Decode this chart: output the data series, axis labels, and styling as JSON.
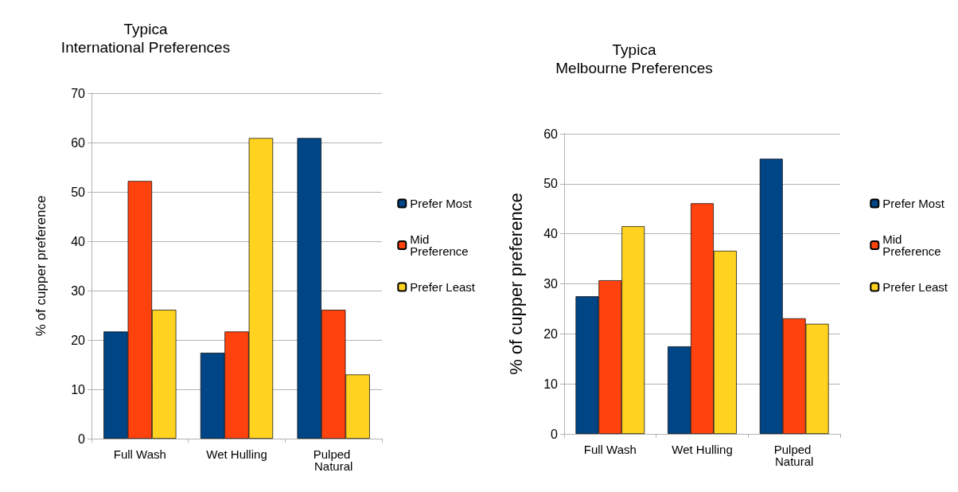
{
  "chart_data": [
    {
      "type": "bar",
      "title": "Typica\nInternational Preferences",
      "ylabel": "% of cupper preference",
      "categories": [
        "Full Wash",
        "Wet Hulling",
        "Pulped Natural"
      ],
      "series": [
        {
          "name": "Prefer Most",
          "color": "#004586",
          "values": [
            21.7,
            17.4,
            60.9
          ]
        },
        {
          "name": "Mid Preference",
          "color": "#ff420e",
          "values": [
            52.2,
            21.7,
            26.1
          ]
        },
        {
          "name": "Prefer Least",
          "color": "#ffd320",
          "values": [
            26.1,
            60.9,
            13.0
          ]
        }
      ],
      "ylim": [
        0,
        70
      ],
      "yticks": [
        0,
        10,
        20,
        30,
        40,
        50,
        60,
        70
      ],
      "grid": "y",
      "legend": "right"
    },
    {
      "type": "bar",
      "title": "Typica\nMelbourne Preferences",
      "ylabel": "% of cupper preference",
      "categories": [
        "Full Wash",
        "Wet Hulling",
        "Pulped Natural"
      ],
      "series": [
        {
          "name": "Prefer Most",
          "color": "#004586",
          "values": [
            27.5,
            17.5,
            55.0
          ]
        },
        {
          "name": "Mid Preference",
          "color": "#ff420e",
          "values": [
            30.7,
            46.1,
            23.1
          ]
        },
        {
          "name": "Prefer Least",
          "color": "#ffd320",
          "values": [
            41.5,
            36.6,
            22.0
          ]
        }
      ],
      "ylim": [
        0,
        60
      ],
      "yticks": [
        0,
        10,
        20,
        30,
        40,
        50,
        60
      ],
      "grid": "y",
      "legend": "right"
    }
  ]
}
